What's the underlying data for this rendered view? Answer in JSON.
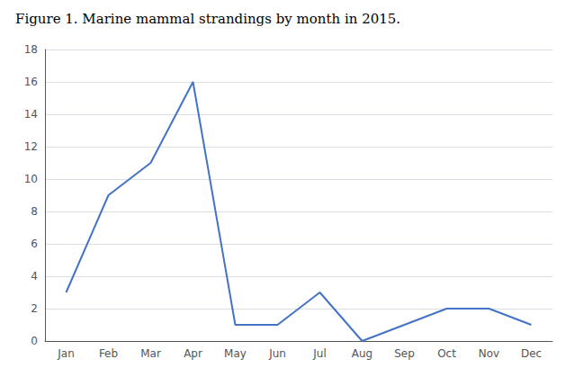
{
  "chart_data": {
    "type": "line",
    "title": "Figure 1. Marine mammal strandings by month in 2015.",
    "categories": [
      "Jan",
      "Feb",
      "Mar",
      "Apr",
      "May",
      "Jun",
      "Jul",
      "Aug",
      "Sep",
      "Oct",
      "Nov",
      "Dec"
    ],
    "values": [
      3,
      9,
      11,
      16,
      1,
      1,
      3,
      0,
      1,
      2,
      2,
      1
    ],
    "color": "#4472C4",
    "ylim": [
      0,
      18
    ],
    "yticks": [
      0,
      2,
      4,
      6,
      8,
      10,
      12,
      14,
      16,
      18
    ],
    "grid": true
  }
}
